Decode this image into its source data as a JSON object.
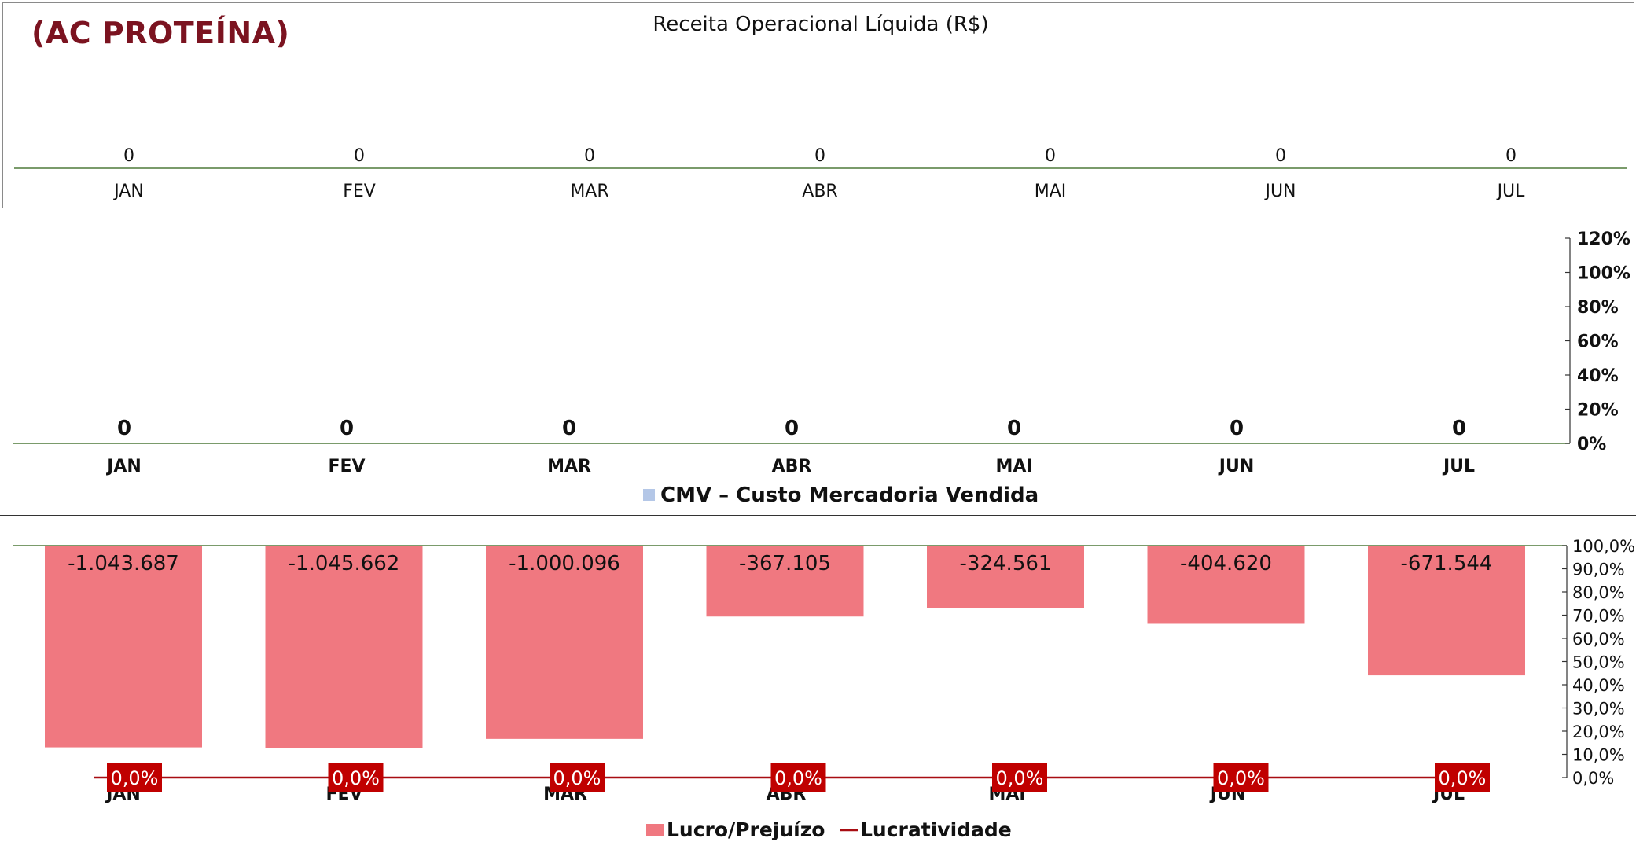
{
  "brand_title": "(AC PROTEÍNA)",
  "chart_data": [
    {
      "type": "bar",
      "title": "Receita Operacional Líquida (R$)",
      "categories": [
        "JAN",
        "FEV",
        "MAR",
        "ABR",
        "MAI",
        "JUN",
        "JUL"
      ],
      "values": [
        0,
        0,
        0,
        0,
        0,
        0,
        0
      ],
      "data_labels": [
        "0",
        "0",
        "0",
        "0",
        "0",
        "0",
        "0"
      ],
      "xlabel": "",
      "ylabel": "",
      "grid": false
    },
    {
      "type": "bar",
      "categories": [
        "JAN",
        "FEV",
        "MAR",
        "ABR",
        "MAI",
        "JUN",
        "JUL"
      ],
      "series": [
        {
          "name": "CMV – Custo Mercadoria Vendida",
          "values": [
            0,
            0,
            0,
            0,
            0,
            0,
            0
          ],
          "color": "#b4c7e7"
        }
      ],
      "data_labels": [
        "0",
        "0",
        "0",
        "0",
        "0",
        "0",
        "0"
      ],
      "y_right_ticks": [
        "0%",
        "20%",
        "40%",
        "60%",
        "80%",
        "100%",
        "120%"
      ],
      "ylim_right": [
        0,
        120
      ],
      "legend": "bottom",
      "grid": false
    },
    {
      "type": "bar",
      "categories": [
        "JAN",
        "FEV",
        "MAR",
        "ABR",
        "MAI",
        "JUN",
        "JUL"
      ],
      "series": [
        {
          "name": "Lucro/Prejuízo",
          "type": "bar",
          "values": [
            -1043687,
            -1045662,
            -1000096,
            -367105,
            -324561,
            -404620,
            -671544
          ],
          "color": "#f07880"
        },
        {
          "name": "Lucratividade",
          "type": "line",
          "values": [
            0,
            0,
            0,
            0,
            0,
            0,
            0
          ],
          "color": "#a80d12"
        }
      ],
      "bar_labels": [
        "-1.043.687",
        "-1.045.662",
        "-1.000.096",
        "-367.105",
        "-324.561",
        "-404.620",
        "-671.544"
      ],
      "line_labels": [
        "0,0%",
        "0,0%",
        "0,0%",
        "0,0%",
        "0,0%",
        "0,0%",
        "0,0%"
      ],
      "y_right_ticks": [
        "0,0%",
        "10,0%",
        "20,0%",
        "30,0%",
        "40,0%",
        "50,0%",
        "60,0%",
        "70,0%",
        "80,0%",
        "90,0%",
        "100,0%"
      ],
      "ylim_right": [
        0,
        100
      ],
      "bar_axis_min": -1200000,
      "legend": "bottom",
      "grid": false
    }
  ]
}
